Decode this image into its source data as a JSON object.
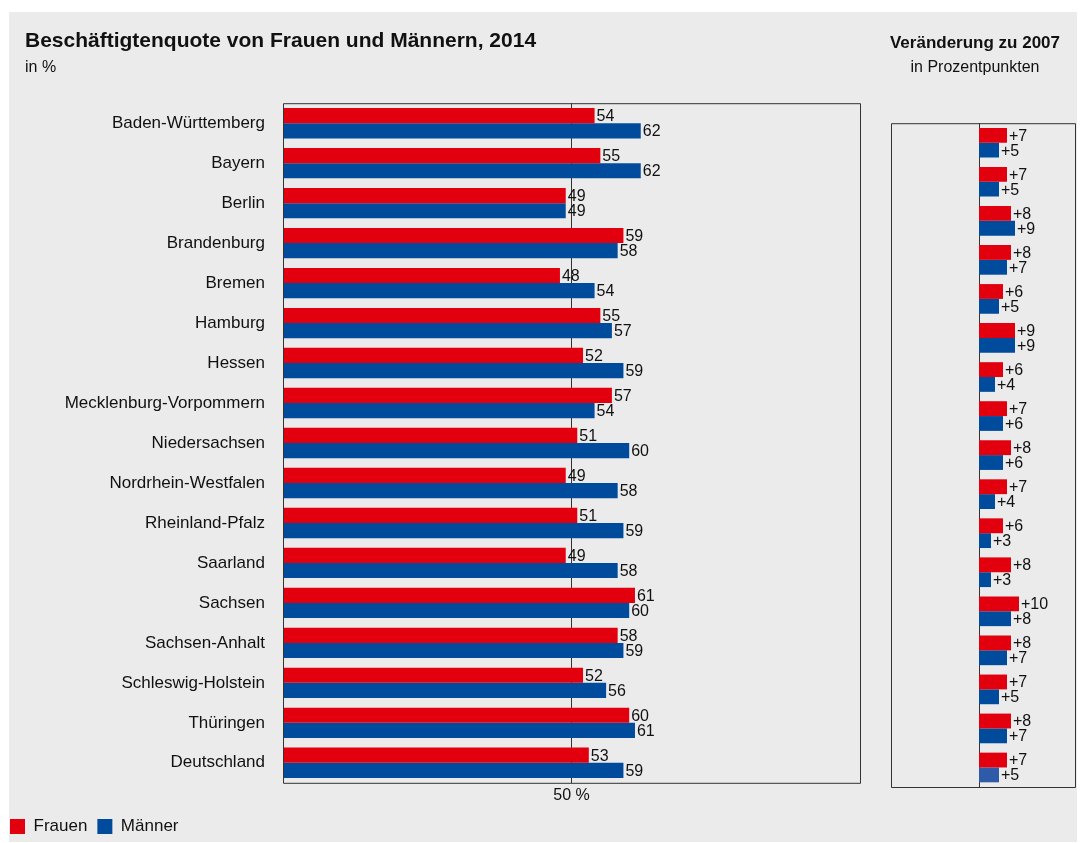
{
  "chart_data": [
    {
      "type": "bar",
      "orientation": "horizontal",
      "title": "Beschäftigtenquote von Frauen und Männern, 2014",
      "subtitle": "in %",
      "categories": [
        "Baden-Württemberg",
        "Bayern",
        "Berlin",
        "Brandenburg",
        "Bremen",
        "Hamburg",
        "Hessen",
        "Mecklenburg-Vorpommern",
        "Niedersachsen",
        "Nordrhein-Westfalen",
        "Rheinland-Pfalz",
        "Saarland",
        "Sachsen",
        "Sachsen-Anhalt",
        "Schleswig-Holstein",
        "Thüringen",
        "Deutschland"
      ],
      "series": [
        {
          "name": "Frauen",
          "color": "#e2000f",
          "values": [
            54,
            55,
            49,
            59,
            48,
            55,
            52,
            57,
            51,
            49,
            51,
            49,
            61,
            58,
            52,
            60,
            53
          ]
        },
        {
          "name": "Männer",
          "color": "#004b9b",
          "values": [
            62,
            62,
            49,
            58,
            54,
            57,
            59,
            54,
            60,
            58,
            59,
            58,
            60,
            59,
            56,
            61,
            59
          ]
        }
      ],
      "xlim": [
        0,
        100
      ],
      "xticks": [
        {
          "value": 50,
          "label": "50 %"
        }
      ],
      "grid": "x",
      "legend": "bottom left",
      "data_labels": true
    },
    {
      "type": "bar",
      "orientation": "horizontal",
      "title": "Veränderung zu 2007",
      "subtitle": "in Prozentpunkten",
      "categories": [
        null,
        null,
        null,
        null,
        null,
        null,
        null,
        null,
        null,
        null,
        null,
        null,
        null,
        null,
        null,
        null,
        null
      ],
      "series": [
        {
          "color": "#e2000f",
          "values": [
            7,
            7,
            8,
            8,
            6,
            9,
            6,
            7,
            8,
            7,
            6,
            8,
            10,
            8,
            7,
            8,
            7
          ],
          "value_labels": [
            "+7",
            "+7",
            "+8",
            "+8",
            "+6",
            "+9",
            "+6",
            "+7",
            "+8",
            "+7",
            "+6",
            "+8",
            "+10",
            "+8",
            "+7",
            "+8",
            "+7"
          ]
        },
        {
          "color": "#004b9b",
          "colors": [
            null,
            null,
            null,
            null,
            null,
            null,
            null,
            null,
            null,
            null,
            null,
            null,
            null,
            null,
            null,
            null,
            "#2f5aa8"
          ],
          "values": [
            5,
            5,
            9,
            7,
            5,
            9,
            4,
            6,
            6,
            4,
            3,
            3,
            8,
            7,
            5,
            7,
            5
          ],
          "value_labels": [
            "+5",
            "+5",
            "+9",
            "+7",
            "+5",
            "+9",
            "+4",
            "+6",
            "+6",
            "+4",
            "+3",
            "+3",
            "+8",
            "+7",
            "+5",
            "+7",
            "+5"
          ]
        }
      ],
      "xlim": [
        -22,
        24
      ],
      "ref_lines": [
        {
          "axis": "x",
          "value": 0,
          "color": "#333333"
        }
      ],
      "legend": false
    }
  ]
}
